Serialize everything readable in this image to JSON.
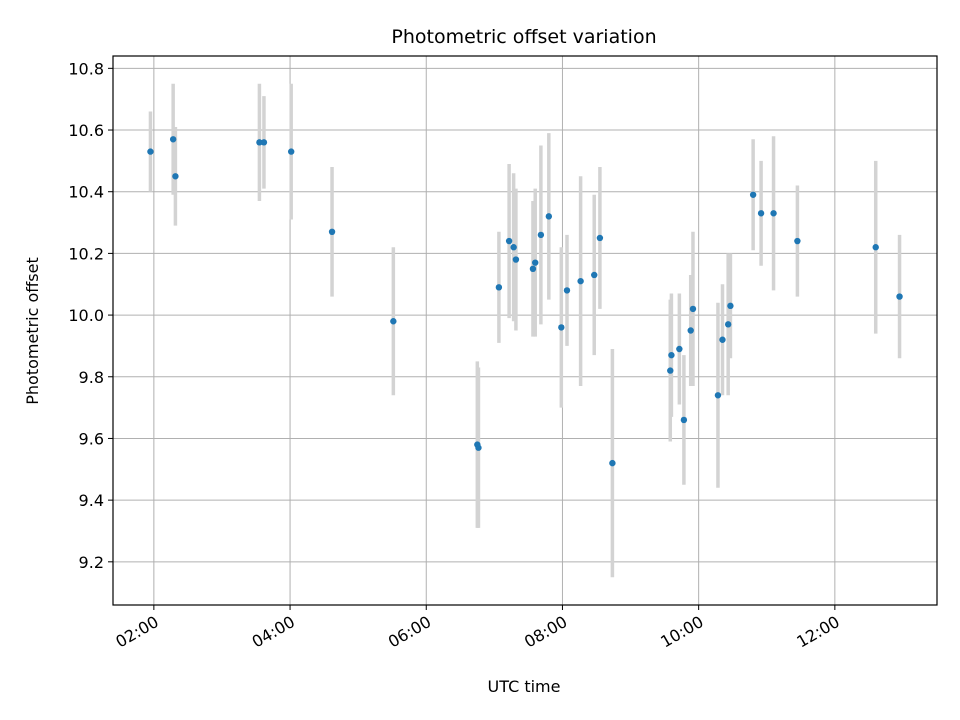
{
  "chart_data": {
    "type": "scatter",
    "title": "Photometric offset variation",
    "xlabel": "UTC time",
    "ylabel": "Photometric offset",
    "x_axis": {
      "kind": "time",
      "range": [
        "01:24",
        "13:30"
      ],
      "ticks": [
        "02:00",
        "04:00",
        "06:00",
        "08:00",
        "10:00",
        "12:00"
      ]
    },
    "y_axis": {
      "range": [
        9.06,
        10.84
      ],
      "ticks": [
        9.2,
        9.4,
        9.6,
        9.8,
        10.0,
        10.2,
        10.4,
        10.6,
        10.8
      ],
      "tick_labels": [
        "9.2",
        "9.4",
        "9.6",
        "9.8",
        "10.0",
        "10.2",
        "10.4",
        "10.6",
        "10.8"
      ]
    },
    "grid": true,
    "colors": {
      "point": "#1f77b4",
      "errorbar": "#d3d3d3",
      "grid": "#b0b0b0"
    },
    "series": [
      {
        "points": [
          {
            "x": "01:57",
            "y": 10.53,
            "err": 0.13
          },
          {
            "x": "02:17",
            "y": 10.57,
            "err": 0.18
          },
          {
            "x": "02:19",
            "y": 10.45,
            "err": 0.16
          },
          {
            "x": "03:33",
            "y": 10.56,
            "err": 0.19
          },
          {
            "x": "03:37",
            "y": 10.56,
            "err": 0.15
          },
          {
            "x": "04:01",
            "y": 10.53,
            "err": 0.22
          },
          {
            "x": "04:37",
            "y": 10.27,
            "err": 0.21
          },
          {
            "x": "05:31",
            "y": 9.98,
            "err": 0.24
          },
          {
            "x": "06:45",
            "y": 9.58,
            "err": 0.27
          },
          {
            "x": "06:46",
            "y": 9.57,
            "err": 0.26
          },
          {
            "x": "07:04",
            "y": 10.09,
            "err": 0.18
          },
          {
            "x": "07:13",
            "y": 10.24,
            "err": 0.25
          },
          {
            "x": "07:17",
            "y": 10.22,
            "err": 0.24
          },
          {
            "x": "07:19",
            "y": 10.18,
            "err": 0.23
          },
          {
            "x": "07:34",
            "y": 10.15,
            "err": 0.22
          },
          {
            "x": "07:36",
            "y": 10.17,
            "err": 0.24
          },
          {
            "x": "07:41",
            "y": 10.26,
            "err": 0.29
          },
          {
            "x": "07:48",
            "y": 10.32,
            "err": 0.27
          },
          {
            "x": "07:59",
            "y": 9.96,
            "err": 0.26
          },
          {
            "x": "08:04",
            "y": 10.08,
            "err": 0.18
          },
          {
            "x": "08:16",
            "y": 10.11,
            "err": 0.34
          },
          {
            "x": "08:28",
            "y": 10.13,
            "err": 0.26
          },
          {
            "x": "08:33",
            "y": 10.25,
            "err": 0.23
          },
          {
            "x": "08:44",
            "y": 9.52,
            "err": 0.37
          },
          {
            "x": "09:35",
            "y": 9.82,
            "err": 0.23
          },
          {
            "x": "09:36",
            "y": 9.87,
            "err": 0.2
          },
          {
            "x": "09:43",
            "y": 9.89,
            "err": 0.18
          },
          {
            "x": "09:47",
            "y": 9.66,
            "err": 0.21
          },
          {
            "x": "09:53",
            "y": 9.95,
            "err": 0.18
          },
          {
            "x": "09:55",
            "y": 10.02,
            "err": 0.25
          },
          {
            "x": "10:17",
            "y": 9.74,
            "err": 0.3
          },
          {
            "x": "10:21",
            "y": 9.92,
            "err": 0.18
          },
          {
            "x": "10:26",
            "y": 9.97,
            "err": 0.23
          },
          {
            "x": "10:28",
            "y": 10.03,
            "err": 0.17
          },
          {
            "x": "10:48",
            "y": 10.39,
            "err": 0.18
          },
          {
            "x": "10:55",
            "y": 10.33,
            "err": 0.17
          },
          {
            "x": "11:06",
            "y": 10.33,
            "err": 0.25
          },
          {
            "x": "11:27",
            "y": 10.24,
            "err": 0.18
          },
          {
            "x": "12:36",
            "y": 10.22,
            "err": 0.28
          },
          {
            "x": "12:57",
            "y": 10.06,
            "err": 0.2
          }
        ]
      }
    ]
  }
}
